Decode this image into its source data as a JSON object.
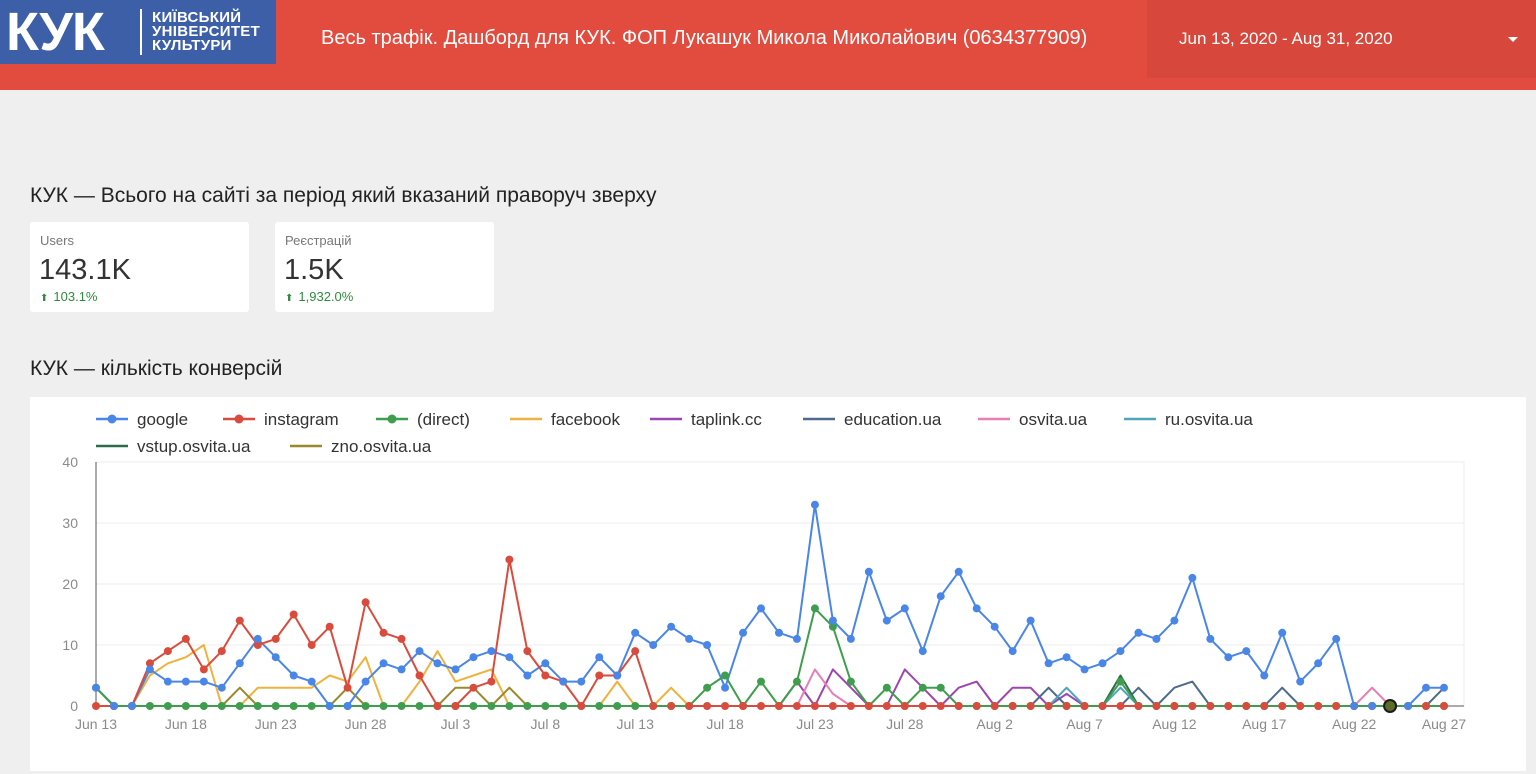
{
  "header": {
    "logo_mark": "КУК",
    "logo_lines": [
      "Київський",
      "університет",
      "культури"
    ],
    "title": "Весь трафік. Дашборд для КУК. ФОП Лукашук Микола Миколайович (0634377909)",
    "date_range": "Jun 13, 2020 - Aug 31, 2020"
  },
  "summary": {
    "title": "КУК — Всього на сайті за період який вказаний праворуч зверху",
    "cards": [
      {
        "label": "Users",
        "value": "143.1K",
        "delta": "103.1%"
      },
      {
        "label": "Реєстрацій",
        "value": "1.5K",
        "delta": "1,932.0%"
      }
    ]
  },
  "conversions": {
    "title": "КУК — кількість конверсій"
  },
  "chart_data": {
    "type": "line",
    "start_date": "2020-06-13",
    "x_tick_labels": [
      "Jun 13",
      "Jun 18",
      "Jun 23",
      "Jun 28",
      "Jul 3",
      "Jul 8",
      "Jul 13",
      "Jul 18",
      "Jul 23",
      "Jul 28",
      "Aug 2",
      "Aug 7",
      "Aug 12",
      "Aug 17",
      "Aug 22",
      "Aug 27"
    ],
    "ylim": [
      0,
      40
    ],
    "y_ticks": [
      0,
      10,
      20,
      30,
      40
    ],
    "grid": true,
    "legend_position": "top",
    "series": [
      {
        "name": "google",
        "color": "#4a86e8",
        "markers": true,
        "values": [
          3,
          0,
          0,
          6,
          4,
          4,
          4,
          3,
          7,
          11,
          8,
          5,
          4,
          0,
          0,
          4,
          7,
          6,
          9,
          7,
          6,
          8,
          9,
          8,
          5,
          7,
          4,
          4,
          8,
          5,
          12,
          10,
          13,
          11,
          10,
          3,
          12,
          16,
          12,
          11,
          33,
          14,
          11,
          22,
          14,
          16,
          9,
          18,
          22,
          16,
          13,
          9,
          14,
          7,
          8,
          6,
          7,
          9,
          12,
          11,
          14,
          21,
          11,
          8,
          9,
          5,
          12,
          4,
          7,
          11,
          0,
          0,
          0,
          0,
          3,
          3
        ]
      },
      {
        "name": "instagram",
        "color": "#d94c3d",
        "markers": true,
        "values": [
          0,
          0,
          0,
          7,
          9,
          11,
          6,
          9,
          14,
          10,
          11,
          15,
          10,
          13,
          3,
          17,
          12,
          11,
          5,
          0,
          0,
          3,
          4,
          24,
          9,
          5,
          4,
          0,
          5,
          5,
          9,
          0,
          0,
          0,
          0,
          0,
          0,
          0,
          0,
          0,
          0,
          0,
          0,
          0,
          0,
          0,
          0,
          0,
          0,
          0,
          0,
          0,
          0,
          0,
          0,
          0,
          0,
          0,
          0,
          0,
          0,
          0,
          0,
          0,
          0,
          0,
          0,
          0,
          0,
          0,
          0,
          0,
          0,
          0,
          0,
          0
        ]
      },
      {
        "name": "(direct)",
        "color": "#3f9e4d",
        "markers": true,
        "values": [
          3,
          0,
          0,
          0,
          0,
          0,
          0,
          0,
          0,
          0,
          0,
          0,
          0,
          0,
          0,
          0,
          0,
          0,
          0,
          0,
          0,
          0,
          0,
          0,
          0,
          0,
          0,
          0,
          0,
          0,
          0,
          0,
          0,
          0,
          3,
          5,
          0,
          4,
          0,
          4,
          16,
          13,
          4,
          0,
          3,
          0,
          3,
          3,
          0,
          0,
          0,
          0,
          0,
          0,
          0,
          0,
          0,
          4,
          0,
          0,
          0,
          0,
          0,
          0,
          0,
          0,
          0,
          0,
          0,
          0,
          0,
          0,
          0,
          0,
          0,
          0
        ]
      },
      {
        "name": "facebook",
        "color": "#f0b23e",
        "markers": false,
        "values": [
          0,
          0,
          0,
          5,
          7,
          8,
          10,
          0,
          0,
          3,
          3,
          3,
          3,
          5,
          4,
          8,
          0,
          0,
          4,
          9,
          4,
          5,
          6,
          0,
          0,
          0,
          0,
          0,
          0,
          4,
          0,
          0,
          3,
          0,
          0,
          0,
          0,
          0,
          0,
          0,
          0,
          0,
          0,
          0,
          0,
          0,
          0,
          0,
          0,
          0,
          0,
          0,
          0,
          0,
          0,
          0,
          0,
          0,
          0,
          0,
          0,
          0,
          0,
          0,
          0,
          0,
          0,
          0,
          0,
          0,
          0,
          0,
          0,
          0,
          0,
          0
        ]
      },
      {
        "name": "taplink.cc",
        "color": "#9c46b0",
        "markers": false,
        "values": [
          0,
          0,
          0,
          0,
          0,
          0,
          0,
          0,
          0,
          0,
          0,
          0,
          0,
          0,
          0,
          0,
          0,
          0,
          0,
          0,
          0,
          0,
          0,
          0,
          0,
          0,
          0,
          0,
          0,
          0,
          0,
          0,
          0,
          0,
          0,
          0,
          0,
          0,
          0,
          4,
          0,
          6,
          3,
          0,
          0,
          6,
          3,
          0,
          3,
          4,
          0,
          3,
          3,
          0,
          2,
          0,
          0,
          0,
          0,
          0,
          0,
          0,
          0,
          0,
          0,
          0,
          0,
          0,
          0,
          0,
          0,
          0,
          0,
          0,
          0,
          0
        ]
      },
      {
        "name": "education.ua",
        "color": "#4e6a8c",
        "markers": false,
        "values": [
          0,
          0,
          0,
          0,
          0,
          0,
          0,
          0,
          0,
          0,
          0,
          0,
          0,
          0,
          0,
          0,
          0,
          0,
          0,
          0,
          0,
          0,
          0,
          0,
          0,
          0,
          0,
          0,
          0,
          0,
          0,
          0,
          0,
          0,
          0,
          0,
          0,
          0,
          0,
          0,
          0,
          0,
          0,
          0,
          0,
          0,
          0,
          0,
          0,
          0,
          0,
          0,
          0,
          3,
          0,
          0,
          0,
          0,
          3,
          0,
          3,
          4,
          0,
          0,
          0,
          0,
          3,
          0,
          0,
          0,
          0,
          0,
          0,
          0,
          0,
          3
        ]
      },
      {
        "name": "osvita.ua",
        "color": "#e57fb5",
        "markers": false,
        "values": [
          0,
          0,
          0,
          0,
          0,
          0,
          0,
          0,
          0,
          0,
          0,
          0,
          0,
          0,
          0,
          0,
          0,
          0,
          0,
          0,
          0,
          0,
          0,
          0,
          0,
          0,
          0,
          0,
          0,
          0,
          0,
          0,
          0,
          0,
          0,
          0,
          0,
          0,
          0,
          0,
          6,
          2,
          0,
          0,
          0,
          0,
          0,
          0,
          0,
          0,
          0,
          0,
          0,
          0,
          0,
          0,
          0,
          0,
          0,
          0,
          0,
          0,
          0,
          0,
          0,
          0,
          0,
          0,
          0,
          0,
          0,
          3,
          0,
          0,
          0,
          0
        ]
      },
      {
        "name": "ru.osvita.ua",
        "color": "#4fa6b8",
        "markers": false,
        "values": [
          0,
          0,
          0,
          0,
          0,
          0,
          0,
          0,
          0,
          0,
          0,
          0,
          0,
          0,
          0,
          0,
          0,
          0,
          0,
          0,
          0,
          0,
          0,
          0,
          0,
          0,
          0,
          0,
          0,
          0,
          0,
          0,
          0,
          0,
          0,
          0,
          0,
          0,
          0,
          0,
          0,
          0,
          0,
          0,
          0,
          0,
          0,
          0,
          0,
          0,
          0,
          0,
          0,
          0,
          3,
          0,
          0,
          3,
          0,
          0,
          0,
          0,
          0,
          0,
          0,
          0,
          0,
          0,
          0,
          0,
          0,
          0,
          0,
          0,
          0,
          0
        ]
      },
      {
        "name": "vstup.osvita.ua",
        "color": "#2e6b4a",
        "markers": false,
        "values": [
          3,
          0,
          0,
          0,
          0,
          0,
          0,
          0,
          0,
          0,
          0,
          0,
          0,
          0,
          0,
          0,
          0,
          0,
          0,
          0,
          0,
          0,
          0,
          0,
          0,
          0,
          0,
          0,
          0,
          0,
          0,
          0,
          0,
          0,
          0,
          0,
          0,
          0,
          0,
          0,
          0,
          0,
          0,
          0,
          0,
          0,
          0,
          0,
          0,
          0,
          0,
          0,
          0,
          0,
          0,
          0,
          0,
          5,
          0,
          0,
          0,
          0,
          0,
          0,
          0,
          0,
          0,
          0,
          0,
          0,
          0,
          0,
          0,
          0,
          0,
          0
        ]
      },
      {
        "name": "zno.osvita.ua",
        "color": "#9a8a2e",
        "markers": false,
        "values": [
          0,
          0,
          0,
          0,
          0,
          0,
          0,
          0,
          3,
          0,
          0,
          0,
          0,
          0,
          3,
          0,
          0,
          0,
          0,
          0,
          3,
          3,
          0,
          3,
          0,
          0,
          0,
          0,
          0,
          0,
          0,
          0,
          0,
          0,
          0,
          0,
          0,
          0,
          0,
          0,
          0,
          0,
          0,
          0,
          0,
          0,
          0,
          0,
          0,
          0,
          0,
          0,
          0,
          0,
          0,
          0,
          0,
          0,
          0,
          0,
          0,
          0,
          0,
          0,
          0,
          0,
          0,
          0,
          0,
          0,
          0,
          0,
          0,
          0,
          0,
          0
        ]
      }
    ]
  }
}
